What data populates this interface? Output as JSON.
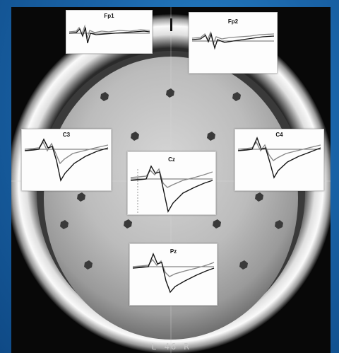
{
  "figure": {
    "footer_text": "L 46 R"
  },
  "panels": [
    {
      "id": "fp1",
      "label": "Fp1"
    },
    {
      "id": "fp2",
      "label": "Fp2"
    },
    {
      "id": "c3",
      "label": "C3"
    },
    {
      "id": "c4",
      "label": "C4"
    },
    {
      "id": "cz",
      "label": "Cz"
    },
    {
      "id": "pz",
      "label": "Pz"
    }
  ],
  "colors": {
    "background": "#1a64a8",
    "frame": "#080808",
    "head": "#bdbdbd",
    "electrode": "#3a3a3a",
    "trace_dark": "#151515",
    "trace_gray": "#8a8a8a"
  }
}
